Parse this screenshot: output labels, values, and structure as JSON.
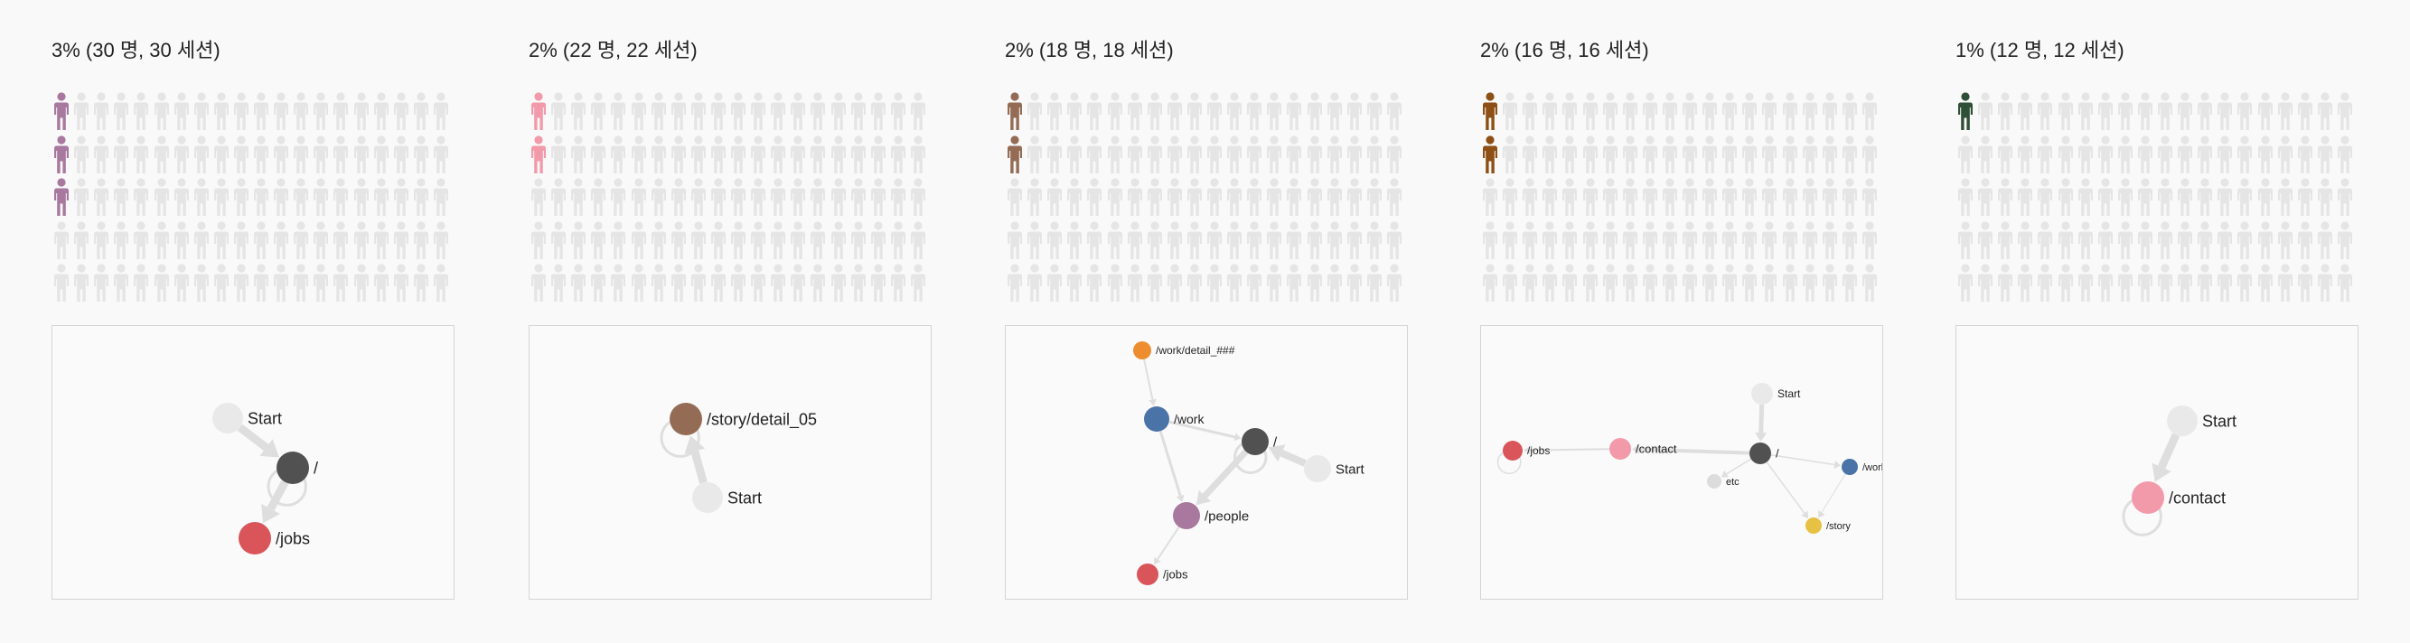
{
  "segments": [
    {
      "title": "3% (30 명, 30 세션)",
      "highlighted_people": 3,
      "total_people": 100,
      "color": "#a8789f",
      "graph": {
        "nodes": [
          {
            "id": "start",
            "label": "Start",
            "color": "#e9e9e9",
            "r": 17,
            "labelSize": 18
          },
          {
            "id": "root",
            "label": "/",
            "color": "#515151",
            "r": 18,
            "labelSize": 18
          },
          {
            "id": "jobs",
            "label": "/jobs",
            "color": "#d9555a",
            "r": 18,
            "labelSize": 18
          }
        ],
        "edges": [
          {
            "from": "start",
            "to": "root",
            "w": 9
          },
          {
            "from": "root",
            "to": "jobs",
            "w": 9
          },
          {
            "from": "root",
            "to": "root",
            "w": 3,
            "loop": true
          }
        ]
      }
    },
    {
      "title": "2% (22 명, 22 세션)",
      "highlighted_people": 2,
      "total_people": 100,
      "color": "#f29aaa",
      "graph": {
        "nodes": [
          {
            "id": "story",
            "label": "/story/detail_05",
            "color": "#946c55",
            "r": 18,
            "labelSize": 18
          },
          {
            "id": "start",
            "label": "Start",
            "color": "#e9e9e9",
            "r": 17,
            "labelSize": 18
          }
        ],
        "edges": [
          {
            "from": "start",
            "to": "story",
            "w": 9
          },
          {
            "from": "story",
            "to": "story",
            "w": 3,
            "loop": true
          }
        ]
      }
    },
    {
      "title": "2% (18 명, 18 세션)",
      "highlighted_people": 2,
      "total_people": 100,
      "color": "#946c55",
      "graph": {
        "nodes": [
          {
            "id": "workdetail",
            "label": "/work/detail_###",
            "color": "#ee8c30",
            "r": 10,
            "labelSize": 12
          },
          {
            "id": "work",
            "label": "/work",
            "color": "#4a73a8",
            "r": 14,
            "labelSize": 14
          },
          {
            "id": "root",
            "label": "/",
            "color": "#515151",
            "r": 15,
            "labelSize": 15
          },
          {
            "id": "start",
            "label": "Start",
            "color": "#e9e9e9",
            "r": 15,
            "labelSize": 15
          },
          {
            "id": "people",
            "label": "/people",
            "color": "#a8789f",
            "r": 15,
            "labelSize": 15
          },
          {
            "id": "jobs",
            "label": "/jobs",
            "color": "#d9555a",
            "r": 12,
            "labelSize": 13
          }
        ],
        "edges": [
          {
            "from": "workdetail",
            "to": "work",
            "w": 2
          },
          {
            "from": "work",
            "to": "root",
            "w": 3
          },
          {
            "from": "work",
            "to": "people",
            "w": 3
          },
          {
            "from": "start",
            "to": "root",
            "w": 8
          },
          {
            "from": "root",
            "to": "people",
            "w": 7
          },
          {
            "from": "people",
            "to": "jobs",
            "w": 2
          },
          {
            "from": "root",
            "to": "root",
            "w": 3,
            "loop": true
          }
        ]
      }
    },
    {
      "title": "2% (16 명, 16 세션)",
      "highlighted_people": 2,
      "total_people": 100,
      "color": "#8e4f17",
      "graph": {
        "nodes": [
          {
            "id": "jobs",
            "label": "/jobs",
            "color": "#d9555a",
            "r": 11,
            "labelSize": 12
          },
          {
            "id": "contact",
            "label": "/contact",
            "color": "#f29aaa",
            "r": 12,
            "labelSize": 13
          },
          {
            "id": "start",
            "label": "Start",
            "color": "#e9e9e9",
            "r": 12,
            "labelSize": 12
          },
          {
            "id": "root",
            "label": "/",
            "color": "#515151",
            "r": 12,
            "labelSize": 13
          },
          {
            "id": "work",
            "label": "/work",
            "color": "#4a73a8",
            "r": 9,
            "labelSize": 11
          },
          {
            "id": "etc",
            "label": "etc",
            "color": "#dcdcdc",
            "r": 8,
            "labelSize": 11
          },
          {
            "id": "story",
            "label": "/story",
            "color": "#e6c143",
            "r": 9,
            "labelSize": 11
          }
        ],
        "edges": [
          {
            "from": "start",
            "to": "root",
            "w": 5
          },
          {
            "from": "root",
            "to": "contact",
            "w": 4
          },
          {
            "from": "contact",
            "to": "jobs",
            "w": 2
          },
          {
            "from": "root",
            "to": "work",
            "w": 1.5
          },
          {
            "from": "root",
            "to": "etc",
            "w": 1.5
          },
          {
            "from": "root",
            "to": "story",
            "w": 1.5
          },
          {
            "from": "work",
            "to": "story",
            "w": 1
          },
          {
            "from": "jobs",
            "to": "jobs",
            "w": 1.5,
            "loop": true
          }
        ]
      }
    },
    {
      "title": "1% (12 명, 12 세션)",
      "highlighted_people": 1,
      "total_people": 100,
      "color": "#2f4f36",
      "graph": {
        "nodes": [
          {
            "id": "start",
            "label": "Start",
            "color": "#e9e9e9",
            "r": 17,
            "labelSize": 18
          },
          {
            "id": "contact",
            "label": "/contact",
            "color": "#f29aaa",
            "r": 18,
            "labelSize": 18
          }
        ],
        "edges": [
          {
            "from": "start",
            "to": "contact",
            "w": 9
          },
          {
            "from": "contact",
            "to": "contact",
            "w": 3,
            "loop": true
          }
        ]
      }
    }
  ]
}
